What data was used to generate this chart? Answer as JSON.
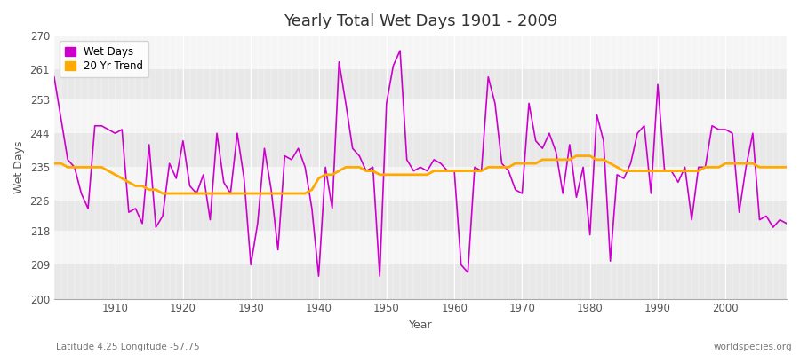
{
  "title": "Yearly Total Wet Days 1901 - 2009",
  "xlabel": "Year",
  "ylabel": "Wet Days",
  "footnote_left": "Latitude 4.25 Longitude -57.75",
  "footnote_right": "worldspecies.org",
  "ylim": [
    200,
    270
  ],
  "yticks": [
    200,
    209,
    218,
    226,
    235,
    244,
    253,
    261,
    270
  ],
  "xlim": [
    1901,
    2009
  ],
  "line_color": "#cc00cc",
  "trend_color": "#ffaa00",
  "bg_color": "#f0f0f0",
  "band_colors": [
    "#e8e8e8",
    "#f5f5f5"
  ],
  "legend_labels": [
    "Wet Days",
    "20 Yr Trend"
  ],
  "years": [
    1901,
    1902,
    1903,
    1904,
    1905,
    1906,
    1907,
    1908,
    1909,
    1910,
    1911,
    1912,
    1913,
    1914,
    1915,
    1916,
    1917,
    1918,
    1919,
    1920,
    1921,
    1922,
    1923,
    1924,
    1925,
    1926,
    1927,
    1928,
    1929,
    1930,
    1931,
    1932,
    1933,
    1934,
    1935,
    1936,
    1937,
    1938,
    1939,
    1940,
    1941,
    1942,
    1943,
    1944,
    1945,
    1946,
    1947,
    1948,
    1949,
    1950,
    1951,
    1952,
    1953,
    1954,
    1955,
    1956,
    1957,
    1958,
    1959,
    1960,
    1961,
    1962,
    1963,
    1964,
    1965,
    1966,
    1967,
    1968,
    1969,
    1970,
    1971,
    1972,
    1973,
    1974,
    1975,
    1976,
    1977,
    1978,
    1979,
    1980,
    1981,
    1982,
    1983,
    1984,
    1985,
    1986,
    1987,
    1988,
    1989,
    1990,
    1991,
    1992,
    1993,
    1994,
    1995,
    1996,
    1997,
    1998,
    1999,
    2000,
    2001,
    2002,
    2003,
    2004,
    2005,
    2006,
    2007,
    2008,
    2009
  ],
  "wet_days": [
    259,
    248,
    237,
    235,
    228,
    224,
    246,
    246,
    245,
    244,
    245,
    223,
    224,
    220,
    241,
    219,
    222,
    236,
    232,
    242,
    230,
    228,
    233,
    221,
    244,
    231,
    228,
    244,
    232,
    209,
    220,
    240,
    229,
    213,
    238,
    237,
    240,
    235,
    224,
    206,
    235,
    224,
    263,
    252,
    240,
    238,
    234,
    235,
    206,
    252,
    262,
    266,
    237,
    234,
    235,
    234,
    237,
    236,
    234,
    234,
    209,
    207,
    235,
    234,
    259,
    252,
    236,
    234,
    229,
    228,
    252,
    242,
    240,
    244,
    239,
    228,
    241,
    227,
    235,
    217,
    249,
    242,
    210,
    233,
    232,
    236,
    244,
    246,
    228,
    257,
    234,
    234,
    231,
    235,
    221,
    235,
    235,
    246,
    245,
    245,
    244,
    223,
    235,
    244,
    221,
    222,
    219,
    221,
    220
  ],
  "trend_values": [
    236,
    236,
    235,
    235,
    235,
    235,
    235,
    235,
    234,
    233,
    232,
    231,
    230,
    230,
    229,
    229,
    228,
    228,
    228,
    228,
    228,
    228,
    228,
    228,
    228,
    228,
    228,
    228,
    228,
    228,
    228,
    228,
    228,
    228,
    228,
    228,
    228,
    228,
    229,
    232,
    233,
    233,
    234,
    235,
    235,
    235,
    234,
    234,
    233,
    233,
    233,
    233,
    233,
    233,
    233,
    233,
    234,
    234,
    234,
    234,
    234,
    234,
    234,
    234,
    235,
    235,
    235,
    235,
    236,
    236,
    236,
    236,
    237,
    237,
    237,
    237,
    237,
    238,
    238,
    238,
    237,
    237,
    236,
    235,
    234,
    234,
    234,
    234,
    234,
    234,
    234,
    234,
    234,
    234,
    234,
    234,
    235,
    235,
    235,
    236,
    236,
    236,
    236,
    236,
    235,
    235,
    235,
    235,
    235
  ]
}
